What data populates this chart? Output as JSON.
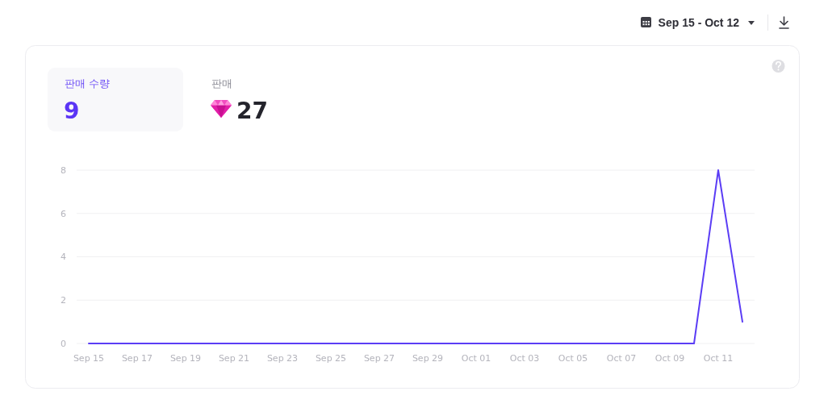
{
  "chart_data": {
    "type": "line",
    "categories": [
      "Sep 15",
      null,
      "Sep 17",
      null,
      "Sep 19",
      null,
      "Sep 21",
      null,
      "Sep 23",
      null,
      "Sep 25",
      null,
      "Sep 27",
      null,
      "Sep 29",
      null,
      "Oct 01",
      null,
      "Oct 03",
      null,
      "Oct 05",
      null,
      "Oct 07",
      null,
      "Oct 09",
      null,
      "Oct 11",
      null
    ],
    "series": [
      {
        "color": "#5b3df5",
        "values": [
          0,
          0,
          0,
          0,
          0,
          0,
          0,
          0,
          0,
          0,
          0,
          0,
          0,
          0,
          0,
          0,
          0,
          0,
          0,
          0,
          0,
          0,
          0,
          0,
          0,
          0,
          8,
          1
        ]
      }
    ],
    "ylim": [
      0,
      8
    ],
    "yticks": [
      0,
      2,
      4,
      6,
      8
    ],
    "grid": "y",
    "annotations": [
      "판매 수량",
      "9",
      "판매",
      "27",
      "Sep 15 - Oct 12"
    ]
  }
}
